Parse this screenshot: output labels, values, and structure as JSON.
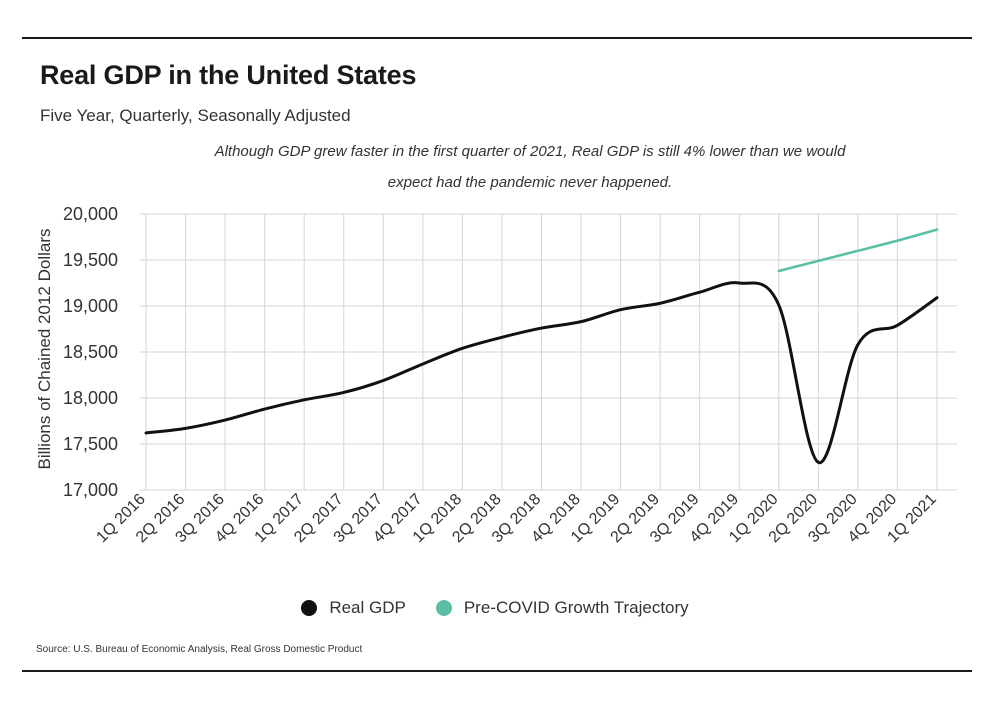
{
  "header": {
    "title": "Real GDP in the United States",
    "subtitle": "Five Year, Quarterly, Seasonally Adjusted",
    "annotation_line1": "Although GDP grew faster in the first quarter of 2021, Real GDP is still 4% lower than we would",
    "annotation_line2": "expect had the pandemic never happened."
  },
  "footer": {
    "source": "Source:  U.S. Bureau of Economic Analysis, Real Gross Domestic Product"
  },
  "colors": {
    "real_gdp": "#111111",
    "trajectory": "#5bbfa8",
    "grid": "#d6d6d6"
  },
  "chart_data": {
    "type": "line",
    "title": "Real GDP in the United States",
    "subtitle": "Five Year, Quarterly, Seasonally Adjusted",
    "xlabel": "",
    "ylabel": "Billions of Chained 2012 Dollars",
    "ylim": [
      17000,
      20000
    ],
    "y_ticks": [
      17000,
      17500,
      18000,
      18500,
      19000,
      19500,
      20000
    ],
    "y_tick_labels": [
      "17,000",
      "17,500",
      "18,000",
      "18,500",
      "19,000",
      "19,500",
      "20,000"
    ],
    "grid": true,
    "legend_position": "bottom",
    "categories": [
      "1Q 2016",
      "2Q 2016",
      "3Q 2016",
      "4Q 2016",
      "1Q 2017",
      "2Q 2017",
      "3Q 2017",
      "4Q 2017",
      "1Q 2018",
      "2Q 2018",
      "3Q 2018",
      "4Q 2018",
      "1Q 2019",
      "2Q 2019",
      "3Q 2019",
      "4Q 2019",
      "1Q 2020",
      "2Q 2020",
      "3Q 2020",
      "4Q 2020",
      "1Q 2021"
    ],
    "series": [
      {
        "name": "Real GDP",
        "values": [
          17620,
          17670,
          17760,
          17880,
          17980,
          18060,
          18190,
          18370,
          18540,
          18660,
          18760,
          18830,
          18960,
          19030,
          19150,
          19250,
          19010,
          17300,
          18580,
          18790,
          19090
        ]
      },
      {
        "name": "Pre-COVID Growth Trajectory",
        "values": [
          null,
          null,
          null,
          null,
          null,
          null,
          null,
          null,
          null,
          null,
          null,
          null,
          null,
          null,
          null,
          null,
          19380,
          19490,
          19600,
          19710,
          19830
        ]
      }
    ]
  }
}
